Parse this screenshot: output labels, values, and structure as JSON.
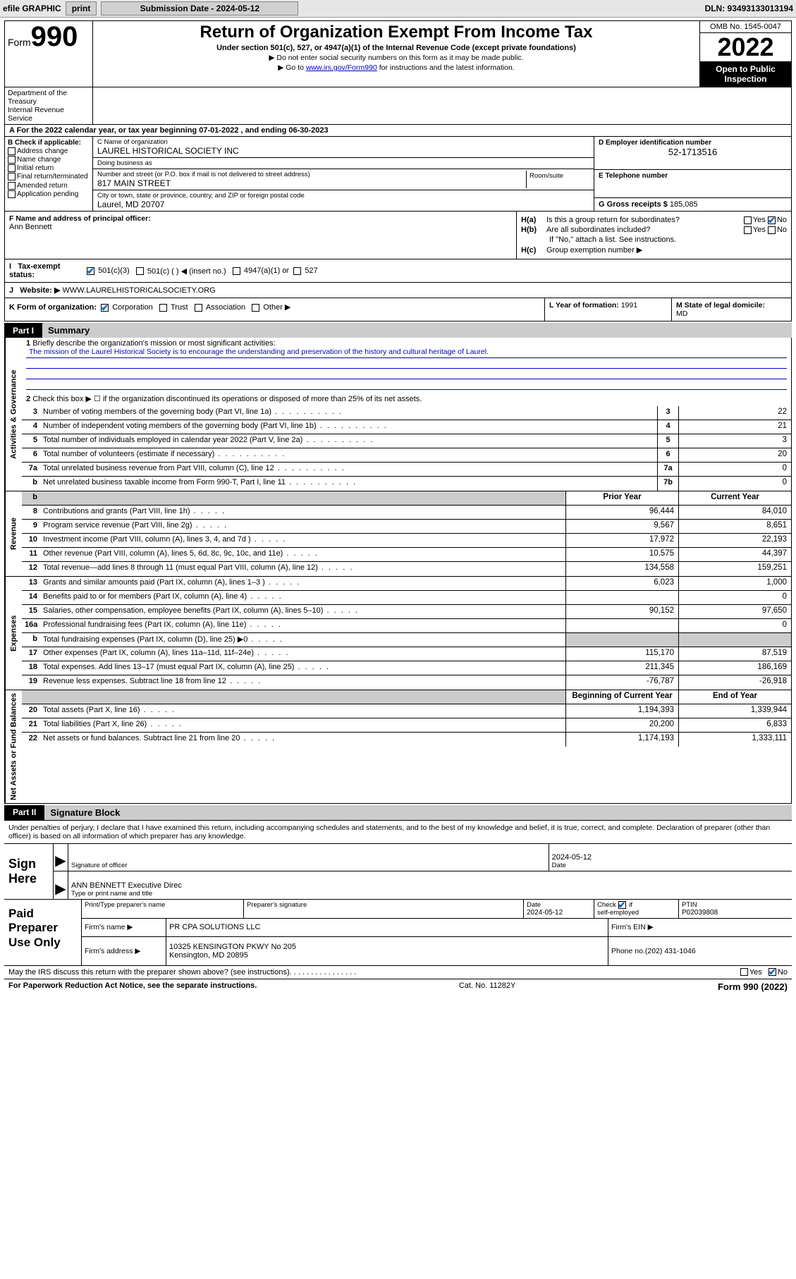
{
  "toolbar": {
    "efile_label": "efile GRAPHIC",
    "print_label": "print",
    "submission_date_label": "Submission Date - 2024-05-12",
    "dln": "DLN: 93493133013194"
  },
  "header": {
    "form_label": "Form",
    "form_number": "990",
    "main_title": "Return of Organization Exempt From Income Tax",
    "subtitle": "Under section 501(c), 527, or 4947(a)(1) of the Internal Revenue Code (except private foundations)",
    "instr1": "▶ Do not enter social security numbers on this form as it may be made public.",
    "instr2_pre": "▶ Go to ",
    "instr2_link": "www.irs.gov/Form990",
    "instr2_post": " for instructions and the latest information.",
    "omb": "OMB No. 1545-0047",
    "year": "2022",
    "open": "Open to Public Inspection",
    "dept1": "Department of the Treasury",
    "dept2": "Internal Revenue Service"
  },
  "row_a": {
    "text_pre": "A For the 2022 calendar year, or tax year beginning ",
    "begin": "07-01-2022",
    "text_mid": "   , and ending ",
    "end": "06-30-2023"
  },
  "col_b": {
    "header": "B Check if applicable:",
    "items": [
      "Address change",
      "Name change",
      "Initial return",
      "Final return/terminated",
      "Amended return",
      "Application pending"
    ]
  },
  "col_c": {
    "name_label": "C Name of organization",
    "name": "LAUREL HISTORICAL SOCIETY INC",
    "dba_label": "Doing business as",
    "dba": "",
    "addr_label": "Number and street (or P.O. box if mail is not delivered to street address)",
    "addr": "817 MAIN STREET",
    "room_label": "Room/suite",
    "city_label": "City or town, state or province, country, and ZIP or foreign postal code",
    "city": "Laurel, MD  20707"
  },
  "col_d": {
    "ein_label": "D Employer identification number",
    "ein": "52-1713516",
    "phone_label": "E Telephone number",
    "phone": "",
    "gross_label": "G Gross receipts $",
    "gross": "185,085"
  },
  "row_f": {
    "label": "F Name and address of principal officer:",
    "name": "Ann Bennett"
  },
  "row_h": {
    "ha_label": "Is this a group return for subordinates?",
    "hb_label": "Are all subordinates included?",
    "hb_note": "If \"No,\" attach a list. See instructions.",
    "hc_label": "Group exemption number ▶",
    "yes": "Yes",
    "no": "No"
  },
  "row_i": {
    "label": "Tax-exempt status:",
    "opt1": "501(c)(3)",
    "opt2": "501(c) (  ) ◀ (insert no.)",
    "opt3": "4947(a)(1) or",
    "opt4": "527"
  },
  "row_j": {
    "label": "Website: ▶",
    "value": "WWW.LAURELHISTORICALSOCIETY.ORG"
  },
  "row_k": {
    "label": "K Form of organization:",
    "opts": [
      "Corporation",
      "Trust",
      "Association",
      "Other ▶"
    ]
  },
  "row_l": {
    "label": "L Year of formation:",
    "value": "1991"
  },
  "row_m": {
    "label": "M State of legal domicile:",
    "value": "MD"
  },
  "part1": {
    "num": "Part I",
    "title": "Summary"
  },
  "q1": {
    "num": "1",
    "label": "Briefly describe the organization's mission or most significant activities:",
    "mission": "The mission of the Laurel Historical Society is to encourage the understanding and preservation of the history and cultural heritage of Laurel."
  },
  "q2": {
    "num": "2",
    "label": "Check this box ▶ ☐  if the organization discontinued its operations or disposed of more than 25% of its net assets."
  },
  "vstrips": {
    "ag": "Activities & Governance",
    "rev": "Revenue",
    "exp": "Expenses",
    "nab": "Net Assets or Fund Balances"
  },
  "cols": {
    "prior": "Prior Year",
    "current": "Current Year",
    "boy": "Beginning of Current Year",
    "eoy": "End of Year"
  },
  "lines_ag": [
    {
      "n": "3",
      "label": "Number of voting members of the governing body (Part VI, line 1a)",
      "box": "3",
      "v": "22"
    },
    {
      "n": "4",
      "label": "Number of independent voting members of the governing body (Part VI, line 1b)",
      "box": "4",
      "v": "21"
    },
    {
      "n": "5",
      "label": "Total number of individuals employed in calendar year 2022 (Part V, line 2a)",
      "box": "5",
      "v": "3"
    },
    {
      "n": "6",
      "label": "Total number of volunteers (estimate if necessary)",
      "box": "6",
      "v": "20"
    },
    {
      "n": "7a",
      "label": "Total unrelated business revenue from Part VIII, column (C), line 12",
      "box": "7a",
      "v": "0"
    },
    {
      "n": "b",
      "label": "Net unrelated business taxable income from Form 990-T, Part I, line 11",
      "box": "7b",
      "v": "0"
    }
  ],
  "lines_rev": [
    {
      "n": "8",
      "label": "Contributions and grants (Part VIII, line 1h)",
      "p": "96,444",
      "c": "84,010"
    },
    {
      "n": "9",
      "label": "Program service revenue (Part VIII, line 2g)",
      "p": "9,567",
      "c": "8,651"
    },
    {
      "n": "10",
      "label": "Investment income (Part VIII, column (A), lines 3, 4, and 7d )",
      "p": "17,972",
      "c": "22,193"
    },
    {
      "n": "11",
      "label": "Other revenue (Part VIII, column (A), lines 5, 6d, 8c, 9c, 10c, and 11e)",
      "p": "10,575",
      "c": "44,397"
    },
    {
      "n": "12",
      "label": "Total revenue—add lines 8 through 11 (must equal Part VIII, column (A), line 12)",
      "p": "134,558",
      "c": "159,251"
    }
  ],
  "lines_exp": [
    {
      "n": "13",
      "label": "Grants and similar amounts paid (Part IX, column (A), lines 1–3 )",
      "p": "6,023",
      "c": "1,000"
    },
    {
      "n": "14",
      "label": "Benefits paid to or for members (Part IX, column (A), line 4)",
      "p": "",
      "c": "0"
    },
    {
      "n": "15",
      "label": "Salaries, other compensation, employee benefits (Part IX, column (A), lines 5–10)",
      "p": "90,152",
      "c": "97,650"
    },
    {
      "n": "16a",
      "label": "Professional fundraising fees (Part IX, column (A), line 11e)",
      "p": "",
      "c": "0"
    },
    {
      "n": "b",
      "label": "Total fundraising expenses (Part IX, column (D), line 25) ▶0",
      "p": "GREY",
      "c": "GREY"
    },
    {
      "n": "17",
      "label": "Other expenses (Part IX, column (A), lines 11a–11d, 11f–24e)",
      "p": "115,170",
      "c": "87,519"
    },
    {
      "n": "18",
      "label": "Total expenses. Add lines 13–17 (must equal Part IX, column (A), line 25)",
      "p": "211,345",
      "c": "186,169"
    },
    {
      "n": "19",
      "label": "Revenue less expenses. Subtract line 18 from line 12",
      "p": "-76,787",
      "c": "-26,918"
    }
  ],
  "lines_nab": [
    {
      "n": "20",
      "label": "Total assets (Part X, line 16)",
      "p": "1,194,393",
      "c": "1,339,944"
    },
    {
      "n": "21",
      "label": "Total liabilities (Part X, line 26)",
      "p": "20,200",
      "c": "6,833"
    },
    {
      "n": "22",
      "label": "Net assets or fund balances. Subtract line 21 from line 20",
      "p": "1,174,193",
      "c": "1,333,111"
    }
  ],
  "part2": {
    "num": "Part II",
    "title": "Signature Block"
  },
  "sig": {
    "intro": "Under penalties of perjury, I declare that I have examined this return, including accompanying schedules and statements, and to the best of my knowledge and belief, it is true, correct, and complete. Declaration of preparer (other than officer) is based on all information of which preparer has any knowledge.",
    "sign_here": "Sign Here",
    "officer_sig_label": "Signature of officer",
    "date_label": "Date",
    "date_val": "2024-05-12",
    "name_title": "ANN BENNETT Executive Direc",
    "name_title_label": "Type or print name and title"
  },
  "prep": {
    "title": "Paid Preparer Use Only",
    "r1": {
      "c1": "Print/Type preparer's name",
      "c2": "Preparer's signature",
      "c3": "Date",
      "c3v": "2024-05-12",
      "c4": "Check ☑ if self-employed",
      "c5": "PTIN",
      "c5v": "P02039808"
    },
    "r2": {
      "label": "Firm's name    ▶",
      "value": "PR CPA SOLUTIONS LLC",
      "ein_label": "Firm's EIN ▶"
    },
    "r3": {
      "label": "Firm's address ▶",
      "value1": "10325 KENSINGTON PKWY No 205",
      "value2": "Kensington, MD  20895",
      "phone_label": "Phone no.",
      "phone": "(202) 431-1046"
    }
  },
  "footer": {
    "discuss": "May the IRS discuss this return with the preparer shown above? (see instructions)",
    "paperwork": "For Paperwork Reduction Act Notice, see the separate instructions.",
    "catno": "Cat. No. 11282Y",
    "formno": "Form 990 (2022)"
  },
  "colors": {
    "link": "#0000cc",
    "check": "#0066cc"
  }
}
